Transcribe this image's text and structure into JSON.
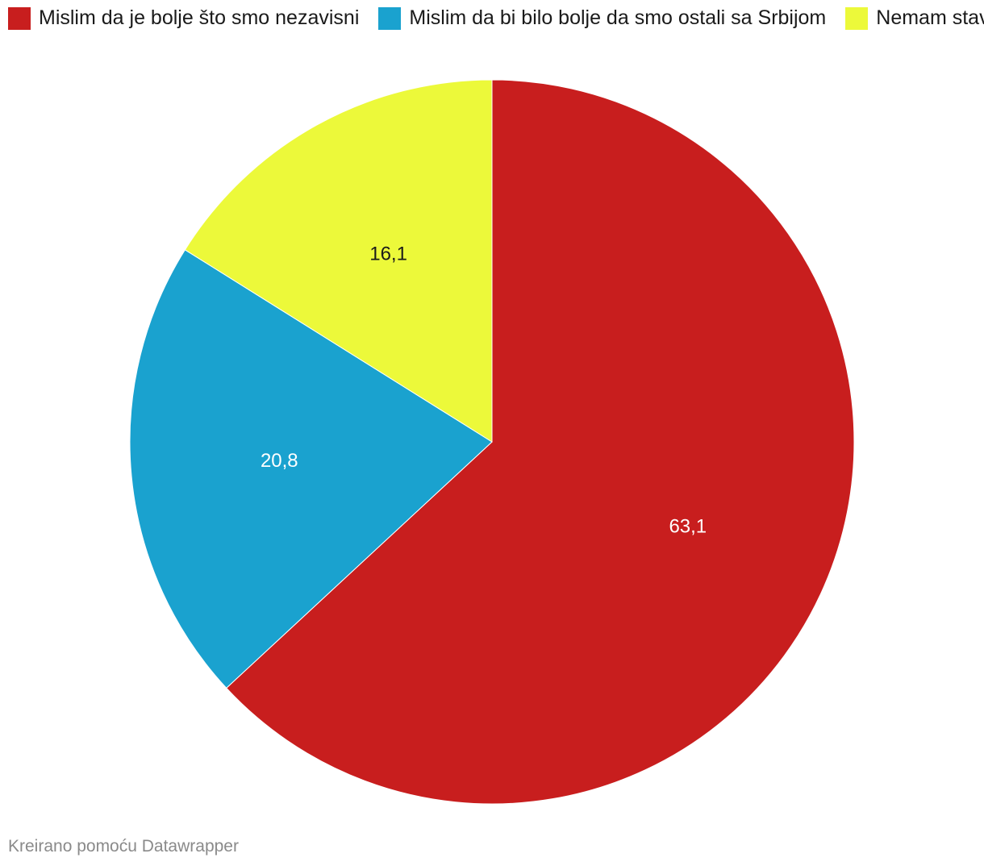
{
  "chart_data": {
    "type": "pie",
    "categories": [
      "Mislim da je bolje što smo nezavisni",
      "Mislim da bi bilo bolje da smo ostali sa Srbijom",
      "Nemam stav"
    ],
    "values": [
      63.1,
      20.8,
      16.1
    ],
    "value_labels": [
      "63,1",
      "20,8",
      "16,1"
    ],
    "colors": [
      "#c81e1e",
      "#1aa2cf",
      "#ecf93a"
    ],
    "label_colors": [
      "#ffffff",
      "#ffffff",
      "#1a1a1a"
    ],
    "start_angle_deg": 0,
    "direction": "clockwise",
    "legend_position": "top-left"
  },
  "footer": {
    "credit": "Kreirano pomoću Datawrapper"
  }
}
